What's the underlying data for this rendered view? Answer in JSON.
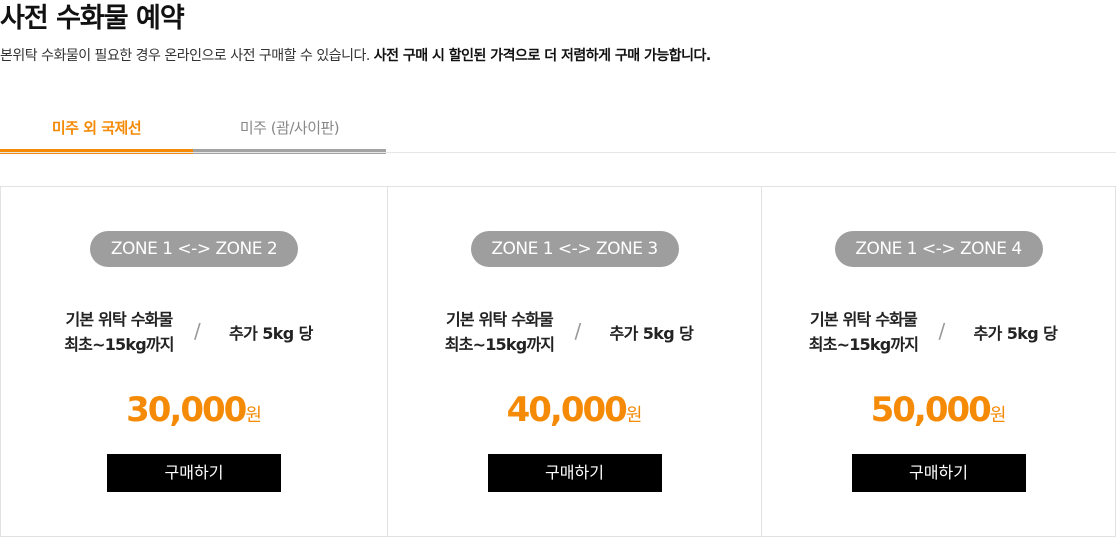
{
  "header": {
    "title": "사전 수화물 예약",
    "description": "본위탁 수화물이 필요한 경우 온라인으로 사전 구매할 수 있습니다.",
    "description_bold": "사전 구매 시 할인된 가격으로 더 저렴하게 구매 가능합니다."
  },
  "tabs": [
    {
      "label": "미주 외 국제선",
      "active": true
    },
    {
      "label": "미주 (괌/사이판)",
      "active": false
    }
  ],
  "colors": {
    "accent": "#f58a07",
    "zone_badge": "#9e9e9e",
    "button": "#000000"
  },
  "cards": [
    {
      "zone": "ZONE 1 <-> ZONE 2",
      "basic_line1": "기본 위탁 수화물",
      "basic_line2": "최초~15kg까지",
      "separator": "/",
      "extra": "추가 5kg 당",
      "price": "30,000",
      "currency": "원",
      "button": "구매하기"
    },
    {
      "zone": "ZONE 1 <-> ZONE 3",
      "basic_line1": "기본 위탁 수화물",
      "basic_line2": "최초~15kg까지",
      "separator": "/",
      "extra": "추가 5kg 당",
      "price": "40,000",
      "currency": "원",
      "button": "구매하기"
    },
    {
      "zone": "ZONE 1 <-> ZONE 4",
      "basic_line1": "기본 위탁 수화물",
      "basic_line2": "최초~15kg까지",
      "separator": "/",
      "extra": "추가 5kg 당",
      "price": "50,000",
      "currency": "원",
      "button": "구매하기"
    }
  ]
}
